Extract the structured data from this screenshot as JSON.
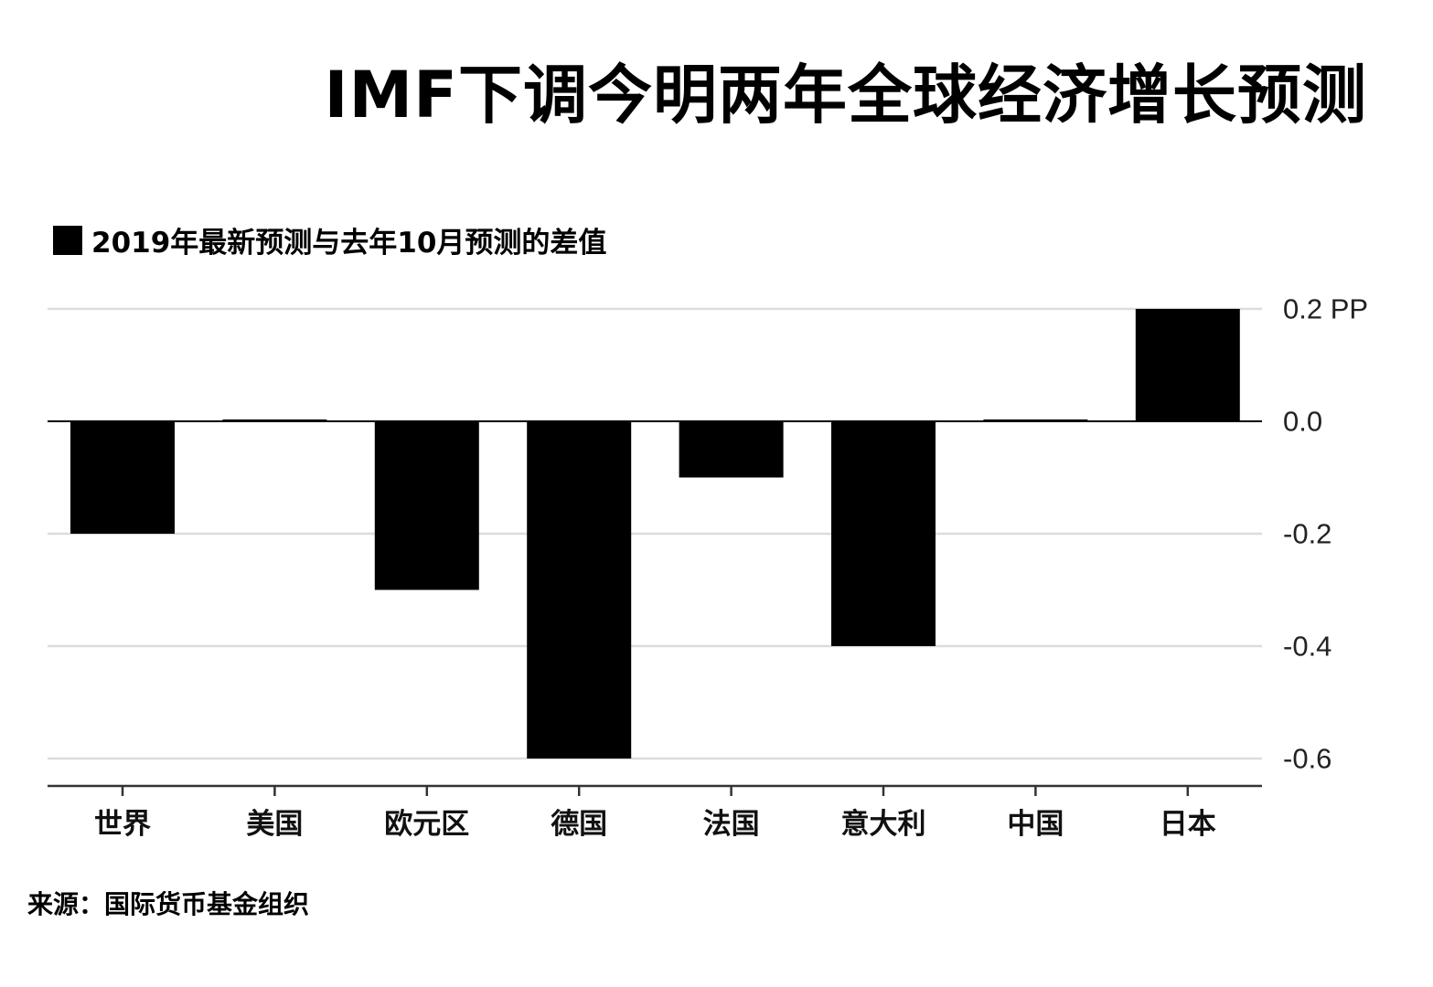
{
  "header": {
    "title": "IMF下调今明两年全球经济增长预测"
  },
  "legend": {
    "label": "2019年最新预测与去年10月预测的差值",
    "color": "#000000"
  },
  "footer": {
    "source": "来源：国际货币基金组织"
  },
  "chart_data": {
    "type": "bar",
    "title": "IMF下调今明两年全球经济增长预测",
    "categories": [
      "世界",
      "美国",
      "欧元区",
      "德国",
      "法国",
      "意大利",
      "中国",
      "日本"
    ],
    "series": [
      {
        "name": "2019年最新预测与去年10月预测的差值",
        "values": [
          -0.2,
          0.0,
          -0.3,
          -0.6,
          -0.1,
          -0.4,
          0.0,
          0.2
        ]
      }
    ],
    "yticks": [
      0.2,
      0.0,
      -0.2,
      -0.4,
      -0.6
    ],
    "ytick_labels": [
      "0.2 PP",
      "0.0",
      "-0.2",
      "-0.4",
      "-0.6"
    ],
    "ylim": [
      -0.65,
      0.2
    ],
    "grid": true,
    "legend_position": "top-left",
    "bar_color": "#000000",
    "grid_color": "#dcdcdc",
    "xlabel": "",
    "ylabel": ""
  }
}
